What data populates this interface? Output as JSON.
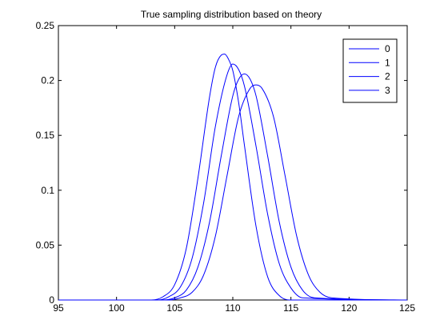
{
  "chart_data": {
    "type": "line",
    "title": "True sampling distribution based on theory",
    "xlabel": "",
    "ylabel": "",
    "xlim": [
      95,
      125
    ],
    "ylim": [
      0,
      0.25
    ],
    "x_ticks": [
      95,
      100,
      105,
      110,
      115,
      120,
      125
    ],
    "x_tick_labels": [
      "95",
      "100",
      "105",
      "110",
      "115",
      "120",
      "125"
    ],
    "y_ticks": [
      0,
      0.05,
      0.1,
      0.15,
      0.2,
      0.25
    ],
    "y_tick_labels": [
      "0",
      "0.05",
      "0.1",
      "0.15",
      "0.2",
      "0.25"
    ],
    "grid": false,
    "legend_position": "top-right",
    "series_color": "#0000ff",
    "series": [
      {
        "name": "0",
        "x": [
          95,
          103,
          104,
          105,
          106,
          107,
          108,
          108.5,
          109,
          109.3,
          109.6,
          110,
          110.5,
          111,
          112,
          113,
          114,
          115,
          125
        ],
        "y": [
          0,
          0,
          0.003,
          0.014,
          0.047,
          0.111,
          0.185,
          0.212,
          0.223,
          0.224,
          0.22,
          0.209,
          0.18,
          0.141,
          0.067,
          0.021,
          0.004,
          0,
          0
        ]
      },
      {
        "name": "1",
        "x": [
          95,
          103.5,
          104.5,
          105.5,
          106.5,
          107.5,
          108.5,
          109.5,
          110,
          110.5,
          111,
          112,
          113,
          114,
          115,
          116,
          125
        ],
        "y": [
          0,
          0,
          0.003,
          0.012,
          0.038,
          0.089,
          0.158,
          0.205,
          0.215,
          0.21,
          0.195,
          0.14,
          0.078,
          0.033,
          0.011,
          0.002,
          0
        ]
      },
      {
        "name": "2",
        "x": [
          95,
          104,
          105,
          106,
          107,
          108,
          109,
          110,
          110.5,
          111,
          111.5,
          112,
          113,
          114,
          115,
          116,
          117,
          125
        ],
        "y": [
          0,
          0,
          0.002,
          0.009,
          0.03,
          0.071,
          0.131,
          0.186,
          0.201,
          0.206,
          0.201,
          0.186,
          0.131,
          0.071,
          0.03,
          0.009,
          0.002,
          0
        ]
      },
      {
        "name": "3",
        "x": [
          95,
          104.5,
          105.5,
          106.5,
          107.5,
          108.5,
          109.5,
          110.5,
          111.5,
          112,
          112.5,
          113.5,
          114.5,
          115.5,
          116.5,
          117.5,
          118.5,
          125
        ],
        "y": [
          0,
          0,
          0.002,
          0.007,
          0.023,
          0.058,
          0.113,
          0.167,
          0.193,
          0.196,
          0.193,
          0.167,
          0.113,
          0.058,
          0.023,
          0.007,
          0.002,
          0
        ]
      }
    ]
  }
}
